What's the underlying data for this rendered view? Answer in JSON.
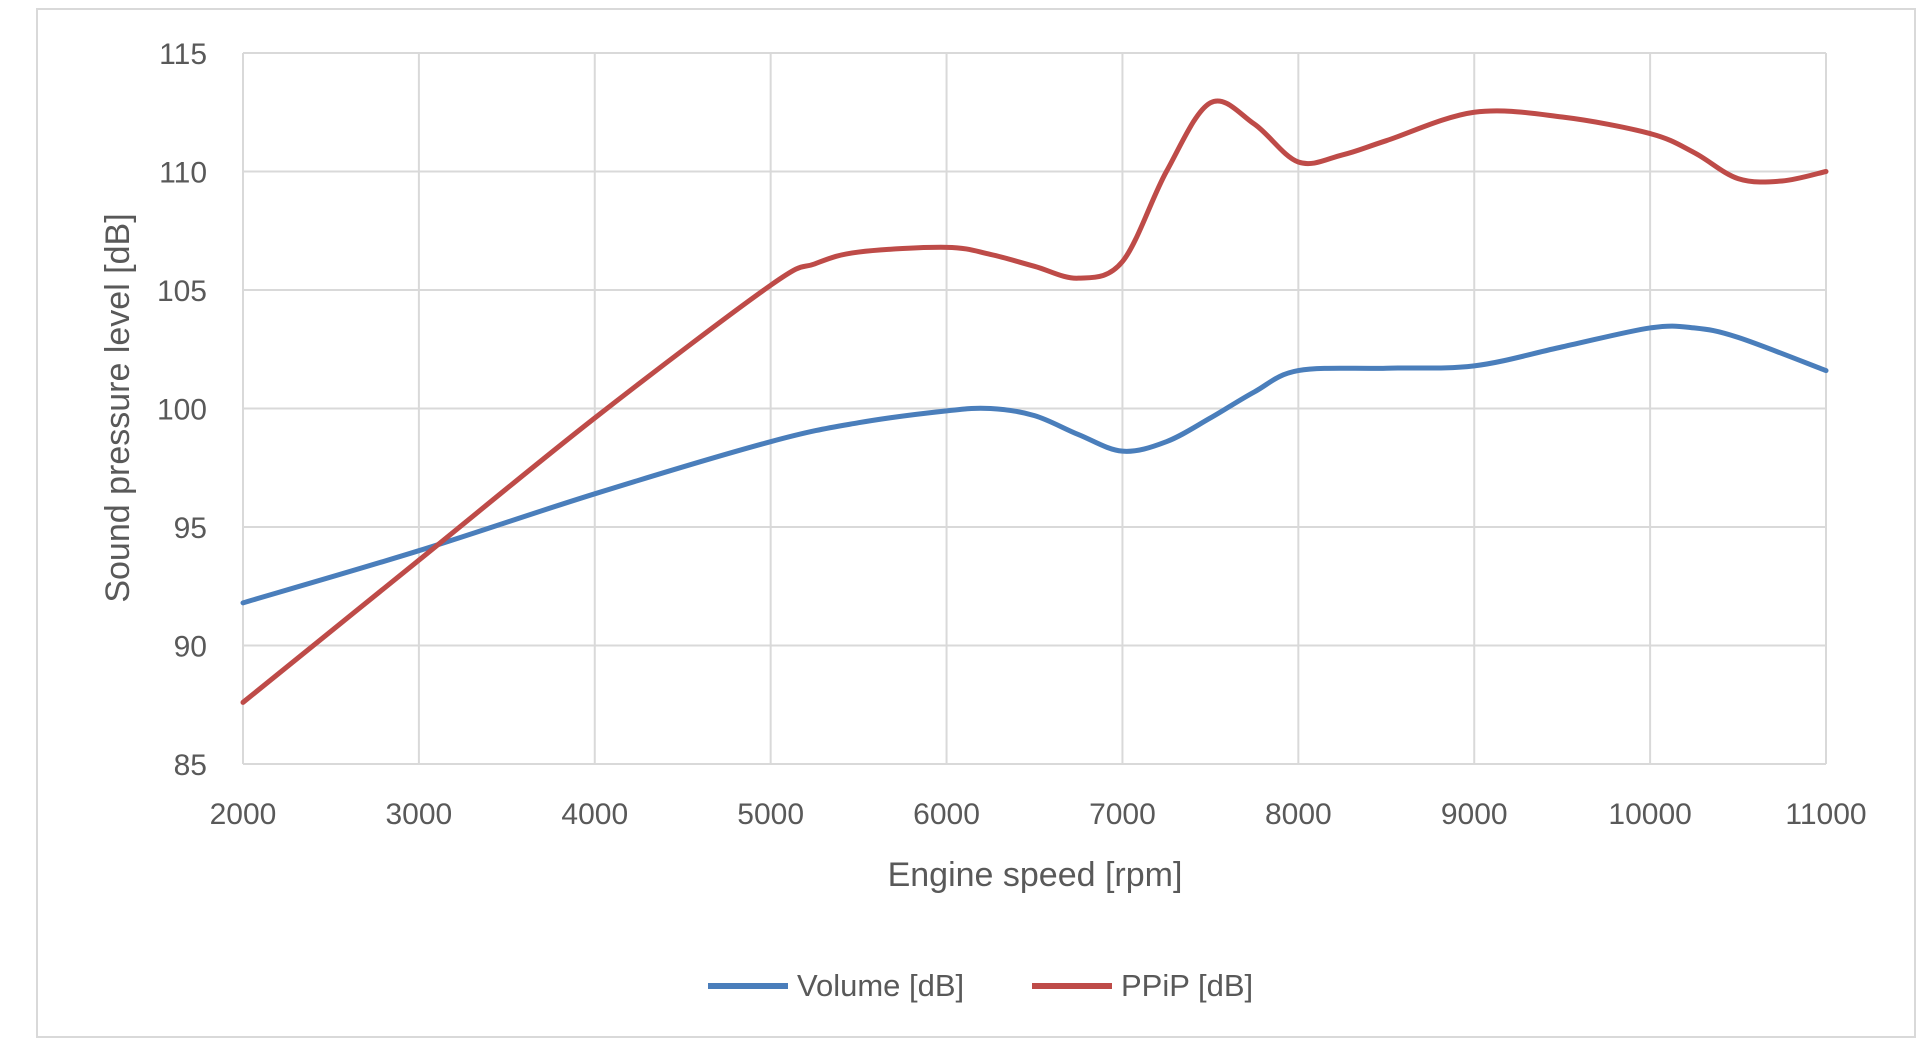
{
  "chart_data": {
    "type": "line",
    "title": "",
    "xlabel": "Engine speed [rpm]",
    "ylabel": "Sound pressure level [dB]",
    "xlim": [
      2000,
      11000
    ],
    "ylim": [
      85,
      115
    ],
    "x_ticks": [
      2000,
      3000,
      4000,
      5000,
      6000,
      7000,
      8000,
      9000,
      10000,
      11000
    ],
    "y_ticks": [
      85,
      90,
      95,
      100,
      105,
      110,
      115
    ],
    "grid": true,
    "legend_position": "bottom",
    "series": [
      {
        "name": "Volume [dB]",
        "color": "#4a7ebb",
        "x": [
          2000,
          3000,
          4000,
          5000,
          5500,
          6000,
          6250,
          6500,
          6750,
          7000,
          7250,
          7500,
          7750,
          8000,
          8500,
          9000,
          9500,
          10000,
          10250,
          10500,
          11000
        ],
        "y": [
          91.8,
          94.0,
          96.4,
          98.6,
          99.4,
          99.9,
          100.0,
          99.7,
          98.9,
          98.2,
          98.6,
          99.6,
          100.7,
          101.6,
          101.7,
          101.8,
          102.6,
          103.4,
          103.4,
          103.0,
          101.6
        ]
      },
      {
        "name": "PPiP [dB]",
        "color": "#be4b48",
        "x": [
          2000,
          3000,
          4000,
          5000,
          5250,
          5500,
          6000,
          6250,
          6500,
          6750,
          7000,
          7250,
          7500,
          7750,
          8000,
          8250,
          8500,
          9000,
          9500,
          10000,
          10250,
          10500,
          10750,
          11000
        ],
        "y": [
          87.6,
          93.6,
          99.6,
          105.2,
          106.1,
          106.6,
          106.8,
          106.5,
          106.0,
          105.5,
          106.2,
          110.0,
          112.9,
          112.0,
          110.4,
          110.7,
          111.3,
          112.5,
          112.3,
          111.6,
          110.8,
          109.7,
          109.6,
          110.0
        ]
      }
    ]
  }
}
